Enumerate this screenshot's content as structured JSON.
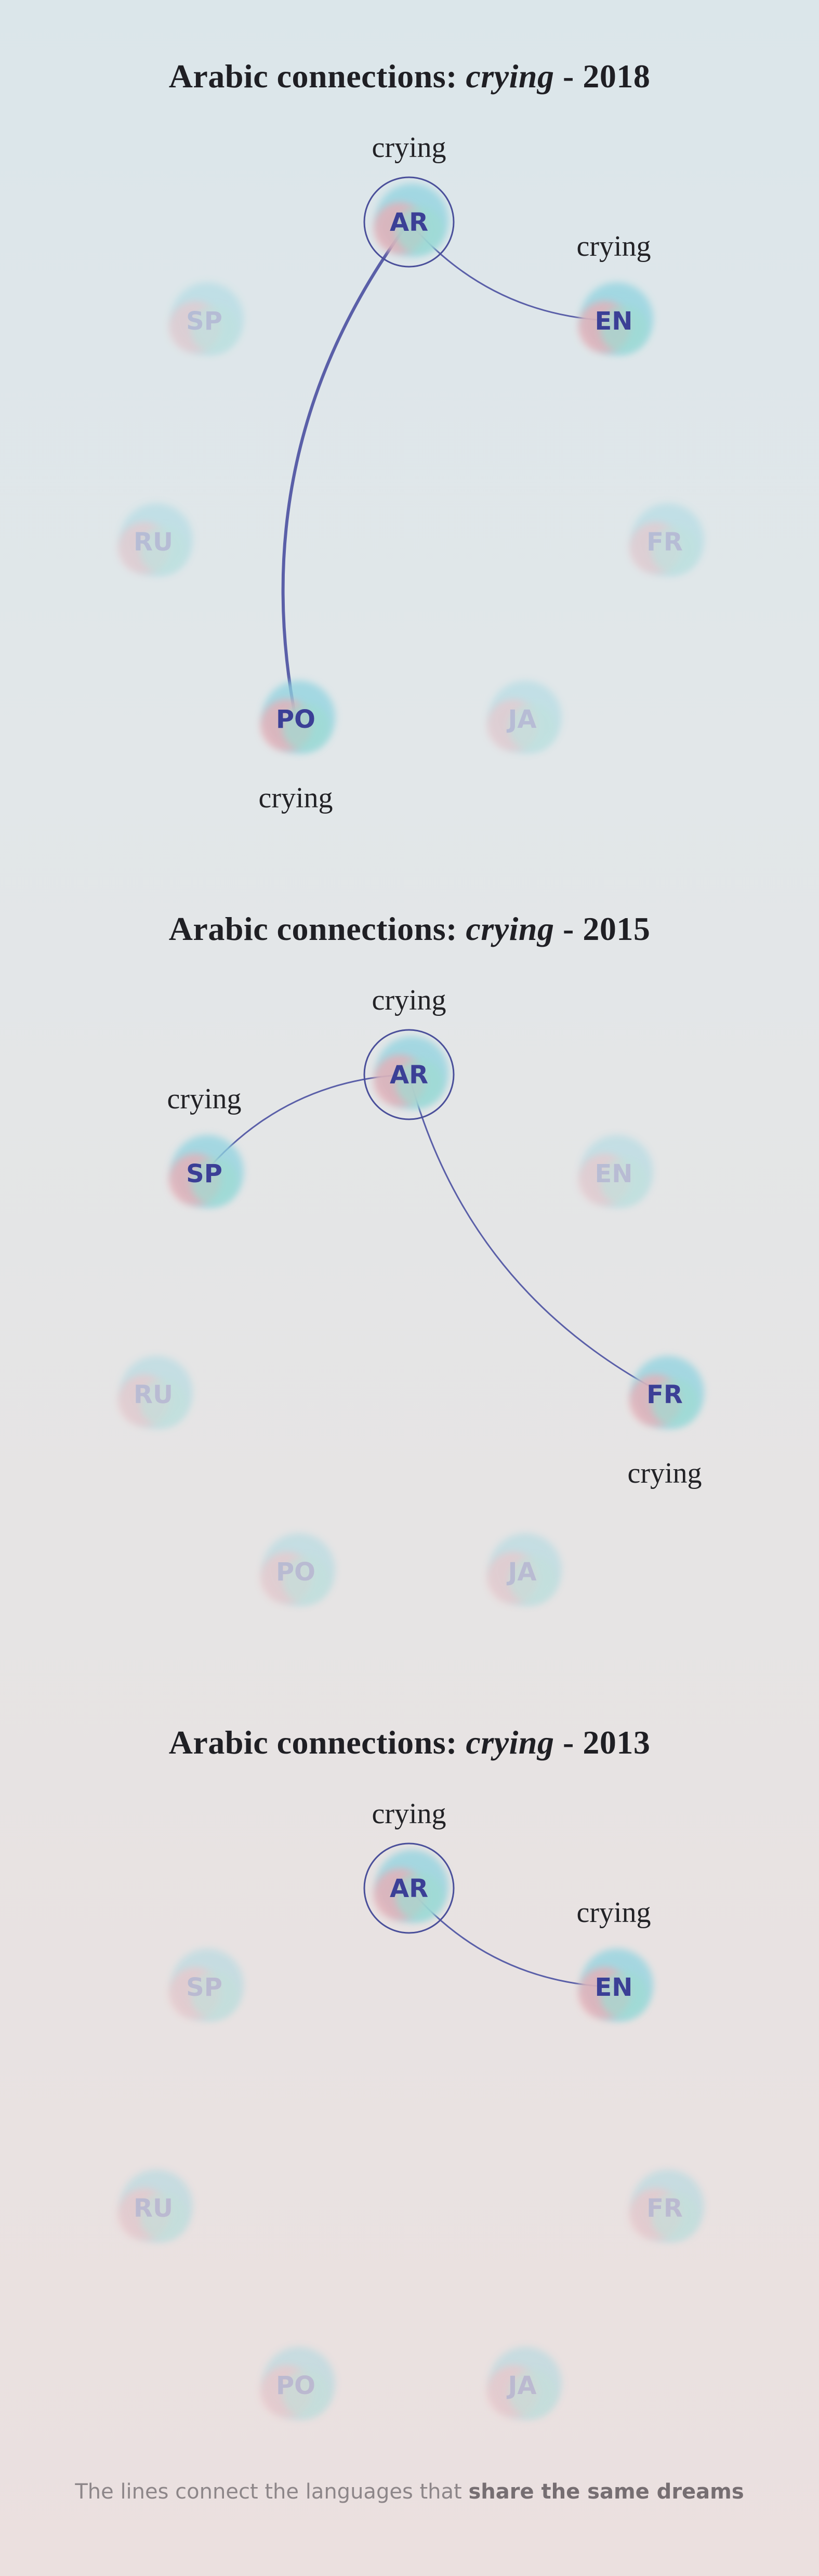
{
  "panels": [
    {
      "title_prefix": "Arabic connections: ",
      "word": "crying",
      "year_text": " - 2018",
      "nodes": [
        {
          "code": "AR",
          "active": true,
          "main": true,
          "label": "crying",
          "label_pos": "top"
        },
        {
          "code": "EN",
          "active": true,
          "main": false,
          "label": "crying",
          "label_pos": "top"
        },
        {
          "code": "SP",
          "active": false,
          "main": false,
          "label": ""
        },
        {
          "code": "RU",
          "active": false,
          "main": false,
          "label": ""
        },
        {
          "code": "FR",
          "active": false,
          "main": false,
          "label": ""
        },
        {
          "code": "PO",
          "active": true,
          "main": false,
          "label": "crying",
          "label_pos": "bottom"
        },
        {
          "code": "JA",
          "active": false,
          "main": false,
          "label": ""
        }
      ],
      "links": [
        {
          "from": "AR",
          "to": "EN",
          "weight": "thin"
        },
        {
          "from": "AR",
          "to": "PO",
          "weight": "thick"
        }
      ]
    },
    {
      "title_prefix": "Arabic connections: ",
      "word": "crying",
      "year_text": " - 2015",
      "nodes": [
        {
          "code": "AR",
          "active": true,
          "main": true,
          "label": "crying",
          "label_pos": "top"
        },
        {
          "code": "EN",
          "active": false,
          "main": false,
          "label": ""
        },
        {
          "code": "SP",
          "active": true,
          "main": false,
          "label": "crying",
          "label_pos": "top"
        },
        {
          "code": "RU",
          "active": false,
          "main": false,
          "label": ""
        },
        {
          "code": "FR",
          "active": true,
          "main": false,
          "label": "crying",
          "label_pos": "bottom"
        },
        {
          "code": "PO",
          "active": false,
          "main": false,
          "label": ""
        },
        {
          "code": "JA",
          "active": false,
          "main": false,
          "label": ""
        }
      ],
      "links": [
        {
          "from": "AR",
          "to": "SP",
          "weight": "thin"
        },
        {
          "from": "AR",
          "to": "FR",
          "weight": "thin"
        }
      ]
    },
    {
      "title_prefix": "Arabic connections: ",
      "word": "crying",
      "year_text": " - 2013",
      "nodes": [
        {
          "code": "AR",
          "active": true,
          "main": true,
          "label": "crying",
          "label_pos": "top"
        },
        {
          "code": "EN",
          "active": true,
          "main": false,
          "label": "crying",
          "label_pos": "top"
        },
        {
          "code": "SP",
          "active": false,
          "main": false,
          "label": ""
        },
        {
          "code": "RU",
          "active": false,
          "main": false,
          "label": ""
        },
        {
          "code": "FR",
          "active": false,
          "main": false,
          "label": ""
        },
        {
          "code": "PO",
          "active": false,
          "main": false,
          "label": ""
        },
        {
          "code": "JA",
          "active": false,
          "main": false,
          "label": ""
        }
      ],
      "links": [
        {
          "from": "AR",
          "to": "EN",
          "weight": "thin"
        }
      ]
    }
  ],
  "footer": {
    "text": "The lines connect the languages that ",
    "emphasis": "share the same dreams"
  },
  "colors": {
    "active_label": "#3b3f96",
    "inactive_label": "#8e93c2",
    "line": "#5a5fa8",
    "ring": "#4a4f9a",
    "blob_blue": "#8fd3e0",
    "blob_pink": "#f0a9b0",
    "blob_teal": "#9fdcd2"
  }
}
